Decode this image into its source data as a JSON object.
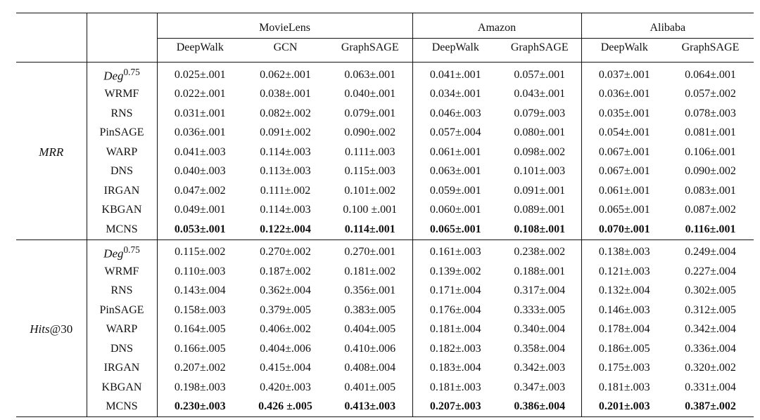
{
  "header": {
    "groups": [
      {
        "name": "MovieLens",
        "models": [
          "DeepWalk",
          "GCN",
          "GraphSAGE"
        ]
      },
      {
        "name": "Amazon",
        "models": [
          "DeepWalk",
          "GraphSAGE"
        ]
      },
      {
        "name": "Alibaba",
        "models": [
          "DeepWalk",
          "GraphSAGE"
        ]
      }
    ]
  },
  "sections": [
    {
      "metric_main": "MRR",
      "metric_suffix": "",
      "rows": [
        {
          "method": "Deg",
          "sup": "0.75",
          "values": [
            "0.025±.001",
            "0.062±.001",
            "0.063±.001",
            "0.041±.001",
            "0.057±.001",
            "0.037±.001",
            "0.064±.001"
          ]
        },
        {
          "method": "WRMF",
          "values": [
            "0.022±.001",
            "0.038±.001",
            "0.040±.001",
            "0.034±.001",
            "0.043±.001",
            "0.036±.001",
            "0.057±.002"
          ]
        },
        {
          "method": "RNS",
          "values": [
            "0.031±.001",
            "0.082±.002",
            "0.079±.001",
            "0.046±.003",
            "0.079±.003",
            "0.035±.001",
            "0.078±.003"
          ]
        },
        {
          "method": "PinSAGE",
          "values": [
            "0.036±.001",
            "0.091±.002",
            "0.090±.002",
            "0.057±.004",
            "0.080±.001",
            "0.054±.001",
            "0.081±.001"
          ]
        },
        {
          "method": "WARP",
          "values": [
            "0.041±.003",
            "0.114±.003",
            "0.111±.003",
            "0.061±.001",
            "0.098±.002",
            "0.067±.001",
            "0.106±.001"
          ]
        },
        {
          "method": "DNS",
          "values": [
            "0.040±.003",
            "0.113±.003",
            "0.115±.003",
            "0.063±.001",
            "0.101±.003",
            "0.067±.001",
            "0.090±.002"
          ]
        },
        {
          "method": "IRGAN",
          "values": [
            "0.047±.002",
            "0.111±.002",
            "0.101±.002",
            "0.059±.001",
            "0.091±.001",
            "0.061±.001",
            "0.083±.001"
          ]
        },
        {
          "method": "KBGAN",
          "values": [
            "0.049±.001",
            "0.114±.003",
            "0.100 ±.001",
            "0.060±.001",
            "0.089±.001",
            "0.065±.001",
            "0.087±.002"
          ]
        },
        {
          "method": "MCNS",
          "bold": true,
          "values": [
            "0.053±.001",
            "0.122±.004",
            "0.114±.001",
            "0.065±.001",
            "0.108±.001",
            "0.070±.001",
            "0.116±.001"
          ]
        }
      ]
    },
    {
      "metric_main": "Hits",
      "metric_suffix": "@30",
      "rows": [
        {
          "method": "Deg",
          "sup": "0.75",
          "values": [
            "0.115±.002",
            "0.270±.002",
            "0.270±.001",
            "0.161±.003",
            "0.238±.002",
            "0.138±.003",
            "0.249±.004"
          ]
        },
        {
          "method": "WRMF",
          "values": [
            "0.110±.003",
            "0.187±.002",
            "0.181±.002",
            "0.139±.002",
            "0.188±.001",
            "0.121±.003",
            "0.227±.004"
          ]
        },
        {
          "method": "RNS",
          "values": [
            "0.143±.004",
            "0.362±.004",
            "0.356±.001",
            "0.171±.004",
            "0.317±.004",
            "0.132±.004",
            "0.302±.005"
          ]
        },
        {
          "method": "PinSAGE",
          "values": [
            "0.158±.003",
            "0.379±.005",
            "0.383±.005",
            "0.176±.004",
            "0.333±.005",
            "0.146±.003",
            "0.312±.005"
          ]
        },
        {
          "method": "WARP",
          "values": [
            "0.164±.005",
            "0.406±.002",
            "0.404±.005",
            "0.181±.004",
            "0.340±.004",
            "0.178±.004",
            "0.342±.004"
          ]
        },
        {
          "method": "DNS",
          "values": [
            "0.166±.005",
            "0.404±.006",
            "0.410±.006",
            "0.182±.003",
            "0.358±.004",
            "0.186±.005",
            "0.336±.004"
          ]
        },
        {
          "method": "IRGAN",
          "values": [
            "0.207±.002",
            "0.415±.004",
            "0.408±.004",
            "0.183±.004",
            "0.342±.003",
            "0.175±.003",
            "0.320±.002"
          ]
        },
        {
          "method": "KBGAN",
          "values": [
            "0.198±.003",
            "0.420±.003",
            "0.401±.005",
            "0.181±.003",
            "0.347±.003",
            "0.181±.003",
            "0.331±.004"
          ]
        },
        {
          "method": "MCNS",
          "bold": true,
          "values": [
            "0.230±.003",
            "0.426 ±.005",
            "0.413±.003",
            "0.207±.003",
            "0.386±.004",
            "0.201±.003",
            "0.387±.002"
          ]
        }
      ]
    }
  ]
}
